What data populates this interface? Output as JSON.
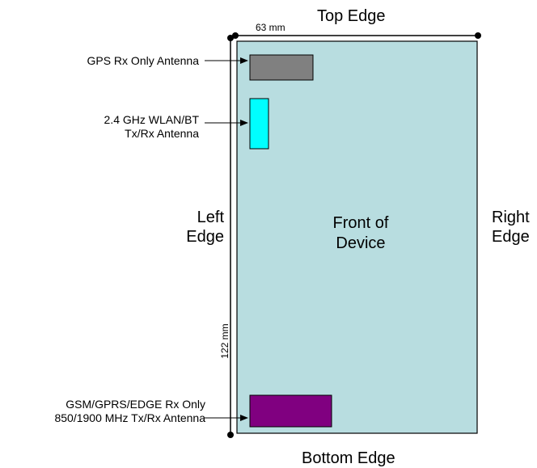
{
  "edges": {
    "top": "Top Edge",
    "bottom": "Bottom Edge",
    "left_line1": "Left",
    "left_line2": "Edge",
    "right_line1": "Right",
    "right_line2": "Edge"
  },
  "dimensions": {
    "width": "63 mm",
    "height": "122 mm"
  },
  "device": {
    "label_line1": "Front of",
    "label_line2": "Device",
    "color": "#b8dde0"
  },
  "antennas": [
    {
      "label_lines": [
        "GPS Rx Only Antenna"
      ],
      "color": "#808080"
    },
    {
      "label_lines": [
        "2.4 GHz WLAN/BT",
        "Tx/Rx Antenna"
      ],
      "color": "#00ffff"
    },
    {
      "label_lines": [
        "GSM/GPRS/EDGE Rx Only",
        "850/1900 MHz Tx/Rx Antenna"
      ],
      "color": "#800080"
    }
  ]
}
